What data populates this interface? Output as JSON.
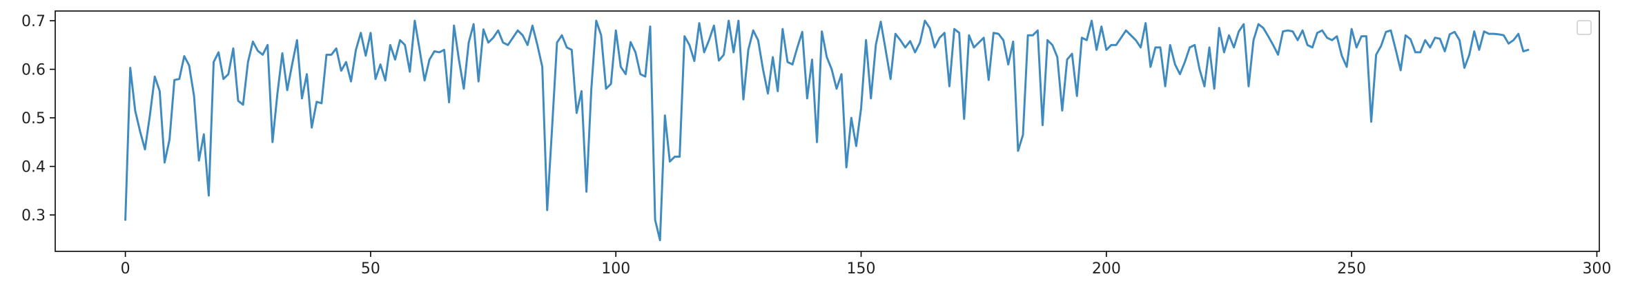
{
  "chart_data": {
    "type": "line",
    "title": "",
    "xlabel": "",
    "ylabel": "",
    "xlim": [
      -14.3,
      300.5
    ],
    "ylim": [
      0.225,
      0.72
    ],
    "xticks": [
      0,
      50,
      100,
      150,
      200,
      250,
      300
    ],
    "yticks": [
      0.3,
      0.4,
      0.5,
      0.6,
      0.7
    ],
    "xtick_labels": [
      "0",
      "50",
      "100",
      "150",
      "200",
      "250",
      "300"
    ],
    "ytick_labels": [
      "0.3",
      "0.4",
      "0.5",
      "0.6",
      "0.7"
    ],
    "grid": false,
    "legend": {
      "location": "upper right",
      "entries": []
    },
    "line_color": "#3f8bbf",
    "series": [
      {
        "values": [
          0.29,
          0.603,
          0.515,
          0.472,
          0.435,
          0.505,
          0.585,
          0.555,
          0.408,
          0.455,
          0.578,
          0.58,
          0.627,
          0.608,
          0.545,
          0.412,
          0.466,
          0.34,
          0.615,
          0.635,
          0.58,
          0.59,
          0.643,
          0.535,
          0.527,
          0.615,
          0.657,
          0.638,
          0.63,
          0.65,
          0.45,
          0.55,
          0.633,
          0.557,
          0.61,
          0.66,
          0.54,
          0.59,
          0.48,
          0.533,
          0.53,
          0.63,
          0.63,
          0.643,
          0.597,
          0.615,
          0.575,
          0.64,
          0.675,
          0.628,
          0.675,
          0.58,
          0.61,
          0.577,
          0.65,
          0.62,
          0.66,
          0.65,
          0.595,
          0.7,
          0.64,
          0.577,
          0.62,
          0.637,
          0.635,
          0.64,
          0.532,
          0.69,
          0.62,
          0.56,
          0.655,
          0.693,
          0.575,
          0.682,
          0.655,
          0.665,
          0.68,
          0.655,
          0.65,
          0.665,
          0.68,
          0.67,
          0.65,
          0.69,
          0.65,
          0.605,
          0.31,
          0.48,
          0.655,
          0.67,
          0.645,
          0.64,
          0.51,
          0.555,
          0.348,
          0.56,
          0.7,
          0.67,
          0.56,
          0.57,
          0.68,
          0.605,
          0.59,
          0.656,
          0.635,
          0.59,
          0.585,
          0.688,
          0.29,
          0.248,
          0.505,
          0.41,
          0.42,
          0.42,
          0.668,
          0.65,
          0.617,
          0.695,
          0.635,
          0.66,
          0.69,
          0.618,
          0.63,
          0.7,
          0.635,
          0.7,
          0.538,
          0.64,
          0.68,
          0.66,
          0.6,
          0.55,
          0.625,
          0.555,
          0.683,
          0.615,
          0.61,
          0.645,
          0.677,
          0.54,
          0.62,
          0.45,
          0.678,
          0.625,
          0.6,
          0.56,
          0.59,
          0.398,
          0.5,
          0.442,
          0.52,
          0.66,
          0.54,
          0.65,
          0.698,
          0.64,
          0.58,
          0.673,
          0.66,
          0.645,
          0.658,
          0.635,
          0.655,
          0.7,
          0.685,
          0.645,
          0.665,
          0.675,
          0.565,
          0.683,
          0.675,
          0.498,
          0.67,
          0.645,
          0.655,
          0.665,
          0.578,
          0.675,
          0.673,
          0.66,
          0.61,
          0.657,
          0.432,
          0.465,
          0.67,
          0.67,
          0.68,
          0.485,
          0.66,
          0.65,
          0.625,
          0.515,
          0.62,
          0.632,
          0.545,
          0.665,
          0.66,
          0.7,
          0.64,
          0.688,
          0.64,
          0.65,
          0.65,
          0.665,
          0.68,
          0.67,
          0.66,
          0.645,
          0.695,
          0.605,
          0.645,
          0.645,
          0.565,
          0.65,
          0.61,
          0.59,
          0.615,
          0.645,
          0.65,
          0.6,
          0.565,
          0.645,
          0.56,
          0.685,
          0.635,
          0.67,
          0.645,
          0.678,
          0.693,
          0.565,
          0.66,
          0.693,
          0.685,
          0.668,
          0.65,
          0.63,
          0.678,
          0.68,
          0.678,
          0.66,
          0.68,
          0.65,
          0.645,
          0.675,
          0.68,
          0.665,
          0.66,
          0.668,
          0.628,
          0.605,
          0.683,
          0.645,
          0.668,
          0.668,
          0.492,
          0.63,
          0.648,
          0.677,
          0.68,
          0.64,
          0.598,
          0.67,
          0.662,
          0.635,
          0.635,
          0.66,
          0.645,
          0.665,
          0.663,
          0.637,
          0.672,
          0.677,
          0.66,
          0.603,
          0.63,
          0.678,
          0.64,
          0.678,
          0.673,
          0.673,
          0.672,
          0.67,
          0.653,
          0.66,
          0.673,
          0.637,
          0.64
        ]
      }
    ]
  }
}
